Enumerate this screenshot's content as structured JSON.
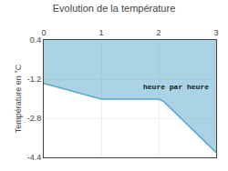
{
  "chart_data": {
    "type": "area",
    "title": "Evolution de la température",
    "ylabel": "Température en °C",
    "x": [
      0,
      0.08,
      1.0,
      2.0,
      2.08,
      3.0
    ],
    "series": [
      {
        "color": "#55aacc",
        "values": [
          -1.38,
          -1.42,
          -2.02,
          -2.02,
          -2.1,
          -4.2
        ]
      }
    ],
    "xlim": [
      0,
      3
    ],
    "ylim": [
      -4.4,
      0.4
    ],
    "xticks": [
      0,
      1,
      2,
      3
    ],
    "yticks": [
      0.4,
      -1.2,
      -2.8,
      -4.4
    ],
    "grid": true,
    "annotations": [
      {
        "text": "heure par heure",
        "x": 2.3,
        "y": -1.5
      }
    ]
  }
}
